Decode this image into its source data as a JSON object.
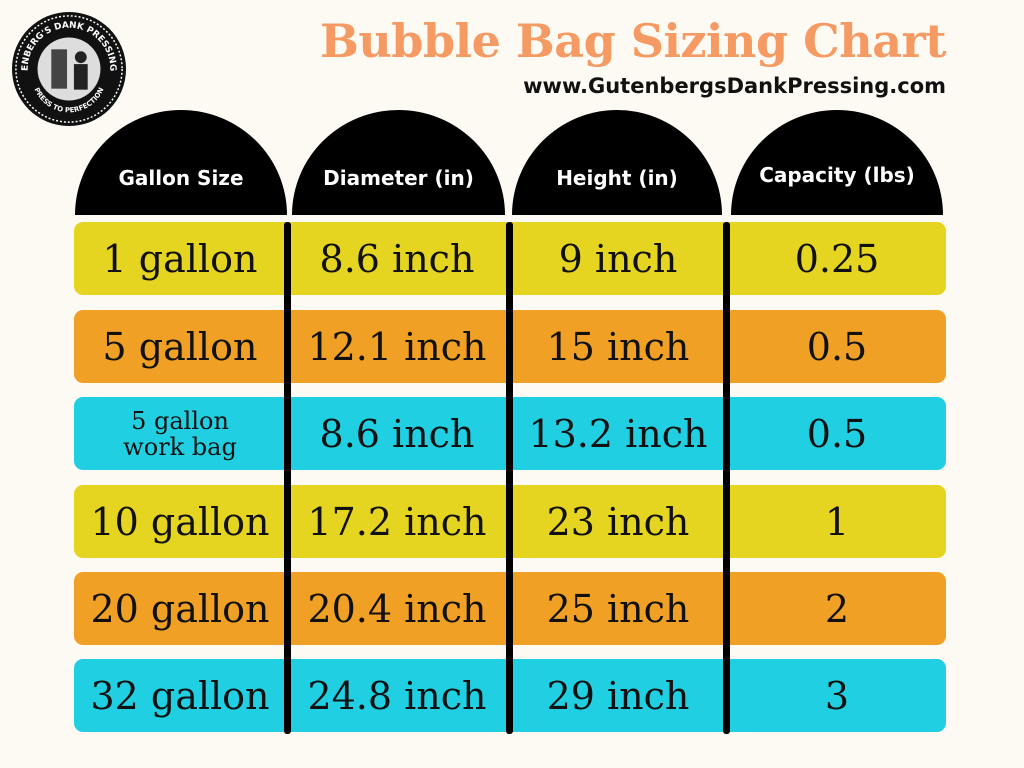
{
  "logo": {
    "top_text": "GUTENBERG'S DANK PRESSING CO.",
    "bottom_text": "PRESS TO PERFECTION"
  },
  "header": {
    "title": "Bubble Bag Sizing Chart",
    "url": "www.GutenbergsDankPressing.com"
  },
  "columns": [
    "Gallon Size",
    "Diameter (in)",
    "Height (in)",
    "Capacity (lbs)"
  ],
  "colors": {
    "yellow": "#e6d520",
    "orange": "#f0a024",
    "cyan": "#20d0e2",
    "title": "#f59a62"
  },
  "rows": [
    {
      "gallon": "1 gallon",
      "diameter": "8.6 inch",
      "height": "9 inch",
      "capacity": "0.25",
      "color": "#e6d520"
    },
    {
      "gallon": "5 gallon",
      "diameter": "12.1 inch",
      "height": "15 inch",
      "capacity": "0.5",
      "color": "#f0a024"
    },
    {
      "gallon": "5 gallon work bag",
      "diameter": "8.6 inch",
      "height": "13.2 inch",
      "capacity": "0.5",
      "color": "#20d0e2"
    },
    {
      "gallon": "10 gallon",
      "diameter": "17.2 inch",
      "height": "23 inch",
      "capacity": "1",
      "color": "#e6d520"
    },
    {
      "gallon": "20 gallon",
      "diameter": "20.4 inch",
      "height": "25 inch",
      "capacity": "2",
      "color": "#f0a024"
    },
    {
      "gallon": "32 gallon",
      "diameter": "24.8 inch",
      "height": "29 inch",
      "capacity": "3",
      "color": "#20d0e2"
    }
  ]
}
